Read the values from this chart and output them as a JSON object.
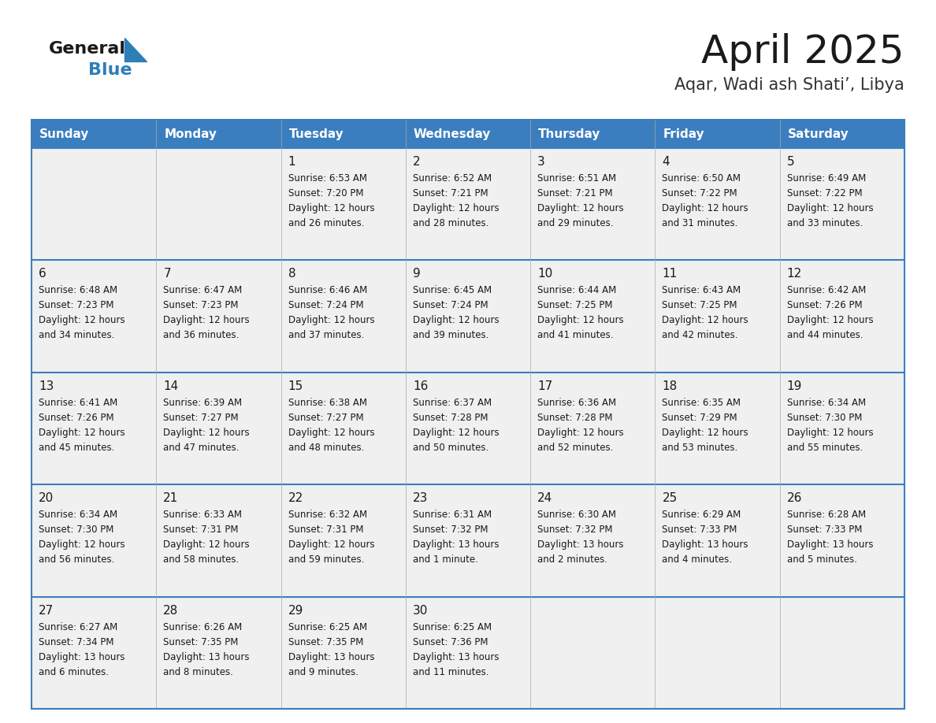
{
  "title": "April 2025",
  "subtitle": "Aqar, Wadi ash Shati’, Libya",
  "days_of_week": [
    "Sunday",
    "Monday",
    "Tuesday",
    "Wednesday",
    "Thursday",
    "Friday",
    "Saturday"
  ],
  "header_bg": "#3A7EBF",
  "header_text": "#FFFFFF",
  "row_bg": "#F0F0F0",
  "cell_text_color": "#1a1a1a",
  "border_color": "#3A7EBF",
  "title_color": "#1a1a1a",
  "subtitle_color": "#333333",
  "calendar_data": [
    [
      {
        "day": null,
        "sunrise": null,
        "sunset": null,
        "daylight": null
      },
      {
        "day": null,
        "sunrise": null,
        "sunset": null,
        "daylight": null
      },
      {
        "day": 1,
        "sunrise": "6:53 AM",
        "sunset": "7:20 PM",
        "daylight": "12 hours\nand 26 minutes."
      },
      {
        "day": 2,
        "sunrise": "6:52 AM",
        "sunset": "7:21 PM",
        "daylight": "12 hours\nand 28 minutes."
      },
      {
        "day": 3,
        "sunrise": "6:51 AM",
        "sunset": "7:21 PM",
        "daylight": "12 hours\nand 29 minutes."
      },
      {
        "day": 4,
        "sunrise": "6:50 AM",
        "sunset": "7:22 PM",
        "daylight": "12 hours\nand 31 minutes."
      },
      {
        "day": 5,
        "sunrise": "6:49 AM",
        "sunset": "7:22 PM",
        "daylight": "12 hours\nand 33 minutes."
      }
    ],
    [
      {
        "day": 6,
        "sunrise": "6:48 AM",
        "sunset": "7:23 PM",
        "daylight": "12 hours\nand 34 minutes."
      },
      {
        "day": 7,
        "sunrise": "6:47 AM",
        "sunset": "7:23 PM",
        "daylight": "12 hours\nand 36 minutes."
      },
      {
        "day": 8,
        "sunrise": "6:46 AM",
        "sunset": "7:24 PM",
        "daylight": "12 hours\nand 37 minutes."
      },
      {
        "day": 9,
        "sunrise": "6:45 AM",
        "sunset": "7:24 PM",
        "daylight": "12 hours\nand 39 minutes."
      },
      {
        "day": 10,
        "sunrise": "6:44 AM",
        "sunset": "7:25 PM",
        "daylight": "12 hours\nand 41 minutes."
      },
      {
        "day": 11,
        "sunrise": "6:43 AM",
        "sunset": "7:25 PM",
        "daylight": "12 hours\nand 42 minutes."
      },
      {
        "day": 12,
        "sunrise": "6:42 AM",
        "sunset": "7:26 PM",
        "daylight": "12 hours\nand 44 minutes."
      }
    ],
    [
      {
        "day": 13,
        "sunrise": "6:41 AM",
        "sunset": "7:26 PM",
        "daylight": "12 hours\nand 45 minutes."
      },
      {
        "day": 14,
        "sunrise": "6:39 AM",
        "sunset": "7:27 PM",
        "daylight": "12 hours\nand 47 minutes."
      },
      {
        "day": 15,
        "sunrise": "6:38 AM",
        "sunset": "7:27 PM",
        "daylight": "12 hours\nand 48 minutes."
      },
      {
        "day": 16,
        "sunrise": "6:37 AM",
        "sunset": "7:28 PM",
        "daylight": "12 hours\nand 50 minutes."
      },
      {
        "day": 17,
        "sunrise": "6:36 AM",
        "sunset": "7:28 PM",
        "daylight": "12 hours\nand 52 minutes."
      },
      {
        "day": 18,
        "sunrise": "6:35 AM",
        "sunset": "7:29 PM",
        "daylight": "12 hours\nand 53 minutes."
      },
      {
        "day": 19,
        "sunrise": "6:34 AM",
        "sunset": "7:30 PM",
        "daylight": "12 hours\nand 55 minutes."
      }
    ],
    [
      {
        "day": 20,
        "sunrise": "6:34 AM",
        "sunset": "7:30 PM",
        "daylight": "12 hours\nand 56 minutes."
      },
      {
        "day": 21,
        "sunrise": "6:33 AM",
        "sunset": "7:31 PM",
        "daylight": "12 hours\nand 58 minutes."
      },
      {
        "day": 22,
        "sunrise": "6:32 AM",
        "sunset": "7:31 PM",
        "daylight": "12 hours\nand 59 minutes."
      },
      {
        "day": 23,
        "sunrise": "6:31 AM",
        "sunset": "7:32 PM",
        "daylight": "13 hours\nand 1 minute."
      },
      {
        "day": 24,
        "sunrise": "6:30 AM",
        "sunset": "7:32 PM",
        "daylight": "13 hours\nand 2 minutes."
      },
      {
        "day": 25,
        "sunrise": "6:29 AM",
        "sunset": "7:33 PM",
        "daylight": "13 hours\nand 4 minutes."
      },
      {
        "day": 26,
        "sunrise": "6:28 AM",
        "sunset": "7:33 PM",
        "daylight": "13 hours\nand 5 minutes."
      }
    ],
    [
      {
        "day": 27,
        "sunrise": "6:27 AM",
        "sunset": "7:34 PM",
        "daylight": "13 hours\nand 6 minutes."
      },
      {
        "day": 28,
        "sunrise": "6:26 AM",
        "sunset": "7:35 PM",
        "daylight": "13 hours\nand 8 minutes."
      },
      {
        "day": 29,
        "sunrise": "6:25 AM",
        "sunset": "7:35 PM",
        "daylight": "13 hours\nand 9 minutes."
      },
      {
        "day": 30,
        "sunrise": "6:25 AM",
        "sunset": "7:36 PM",
        "daylight": "13 hours\nand 11 minutes."
      },
      {
        "day": null,
        "sunrise": null,
        "sunset": null,
        "daylight": null
      },
      {
        "day": null,
        "sunrise": null,
        "sunset": null,
        "daylight": null
      },
      {
        "day": null,
        "sunrise": null,
        "sunset": null,
        "daylight": null
      }
    ]
  ]
}
